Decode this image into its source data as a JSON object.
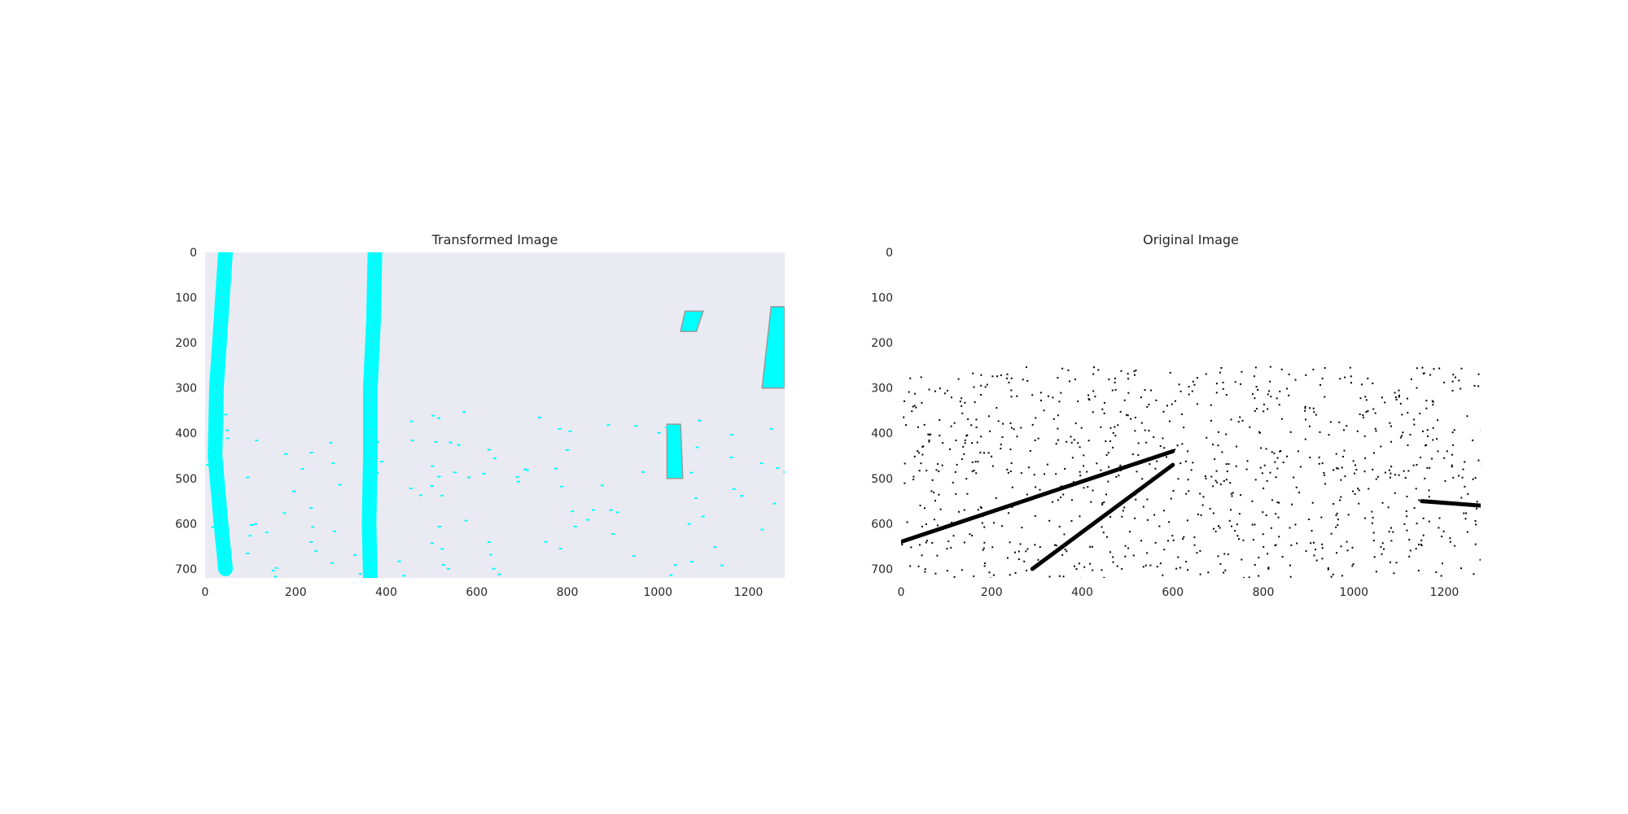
{
  "chart_data": [
    {
      "type": "image",
      "title": "Transformed Image",
      "xlim": [
        0,
        1280
      ],
      "ylim": [
        720,
        0
      ],
      "x_ticks": [
        0,
        200,
        400,
        600,
        800,
        1000,
        1200
      ],
      "y_ticks": [
        0,
        100,
        200,
        300,
        400,
        500,
        600,
        700
      ],
      "grid": false,
      "background_color": "#EAEAF2",
      "highlight_color": "#00FFFF",
      "edge_color": "#9A9A9A",
      "content": "bird's-eye binary lane mask",
      "features": [
        {
          "name": "left-lane-line",
          "points": [
            [
              45,
              0
            ],
            [
              35,
              150
            ],
            [
              25,
              300
            ],
            [
              22,
              450
            ],
            [
              35,
              600
            ],
            [
              45,
              700
            ]
          ]
        },
        {
          "name": "right-lane-line",
          "points": [
            [
              375,
              0
            ],
            [
              372,
              150
            ],
            [
              365,
              300
            ],
            [
              365,
              450
            ],
            [
              362,
              600
            ],
            [
              365,
              720
            ]
          ]
        },
        {
          "name": "blob-1",
          "points": [
            [
              1020,
              380
            ],
            [
              1050,
              380
            ],
            [
              1055,
              500
            ],
            [
              1020,
              500
            ]
          ]
        },
        {
          "name": "blob-2",
          "points": [
            [
              1060,
              130
            ],
            [
              1100,
              130
            ],
            [
              1085,
              175
            ],
            [
              1050,
              175
            ]
          ]
        },
        {
          "name": "blob-3",
          "points": [
            [
              1250,
              120
            ],
            [
              1280,
              120
            ],
            [
              1280,
              300
            ],
            [
              1230,
              300
            ]
          ]
        }
      ]
    },
    {
      "type": "image",
      "title": "Original Image",
      "xlim": [
        0,
        1280
      ],
      "ylim": [
        720,
        0
      ],
      "x_ticks": [
        0,
        200,
        400,
        600,
        800,
        1000,
        1200
      ],
      "y_ticks": [
        0,
        100,
        200,
        300,
        400,
        500,
        600,
        700
      ],
      "grid": false,
      "background_color": "#FFFFFF",
      "edge_color": "#000000",
      "content": "binary edge detection of road scene",
      "features": [
        {
          "name": "left-lane-edge",
          "points": [
            [
              290,
              700
            ],
            [
              600,
              470
            ]
          ]
        },
        {
          "name": "far-left-edge",
          "points": [
            [
              0,
              640
            ],
            [
              600,
              440
            ]
          ]
        },
        {
          "name": "right-lane-edge",
          "points": [
            [
              1150,
              550
            ],
            [
              1280,
              560
            ]
          ]
        }
      ]
    }
  ]
}
